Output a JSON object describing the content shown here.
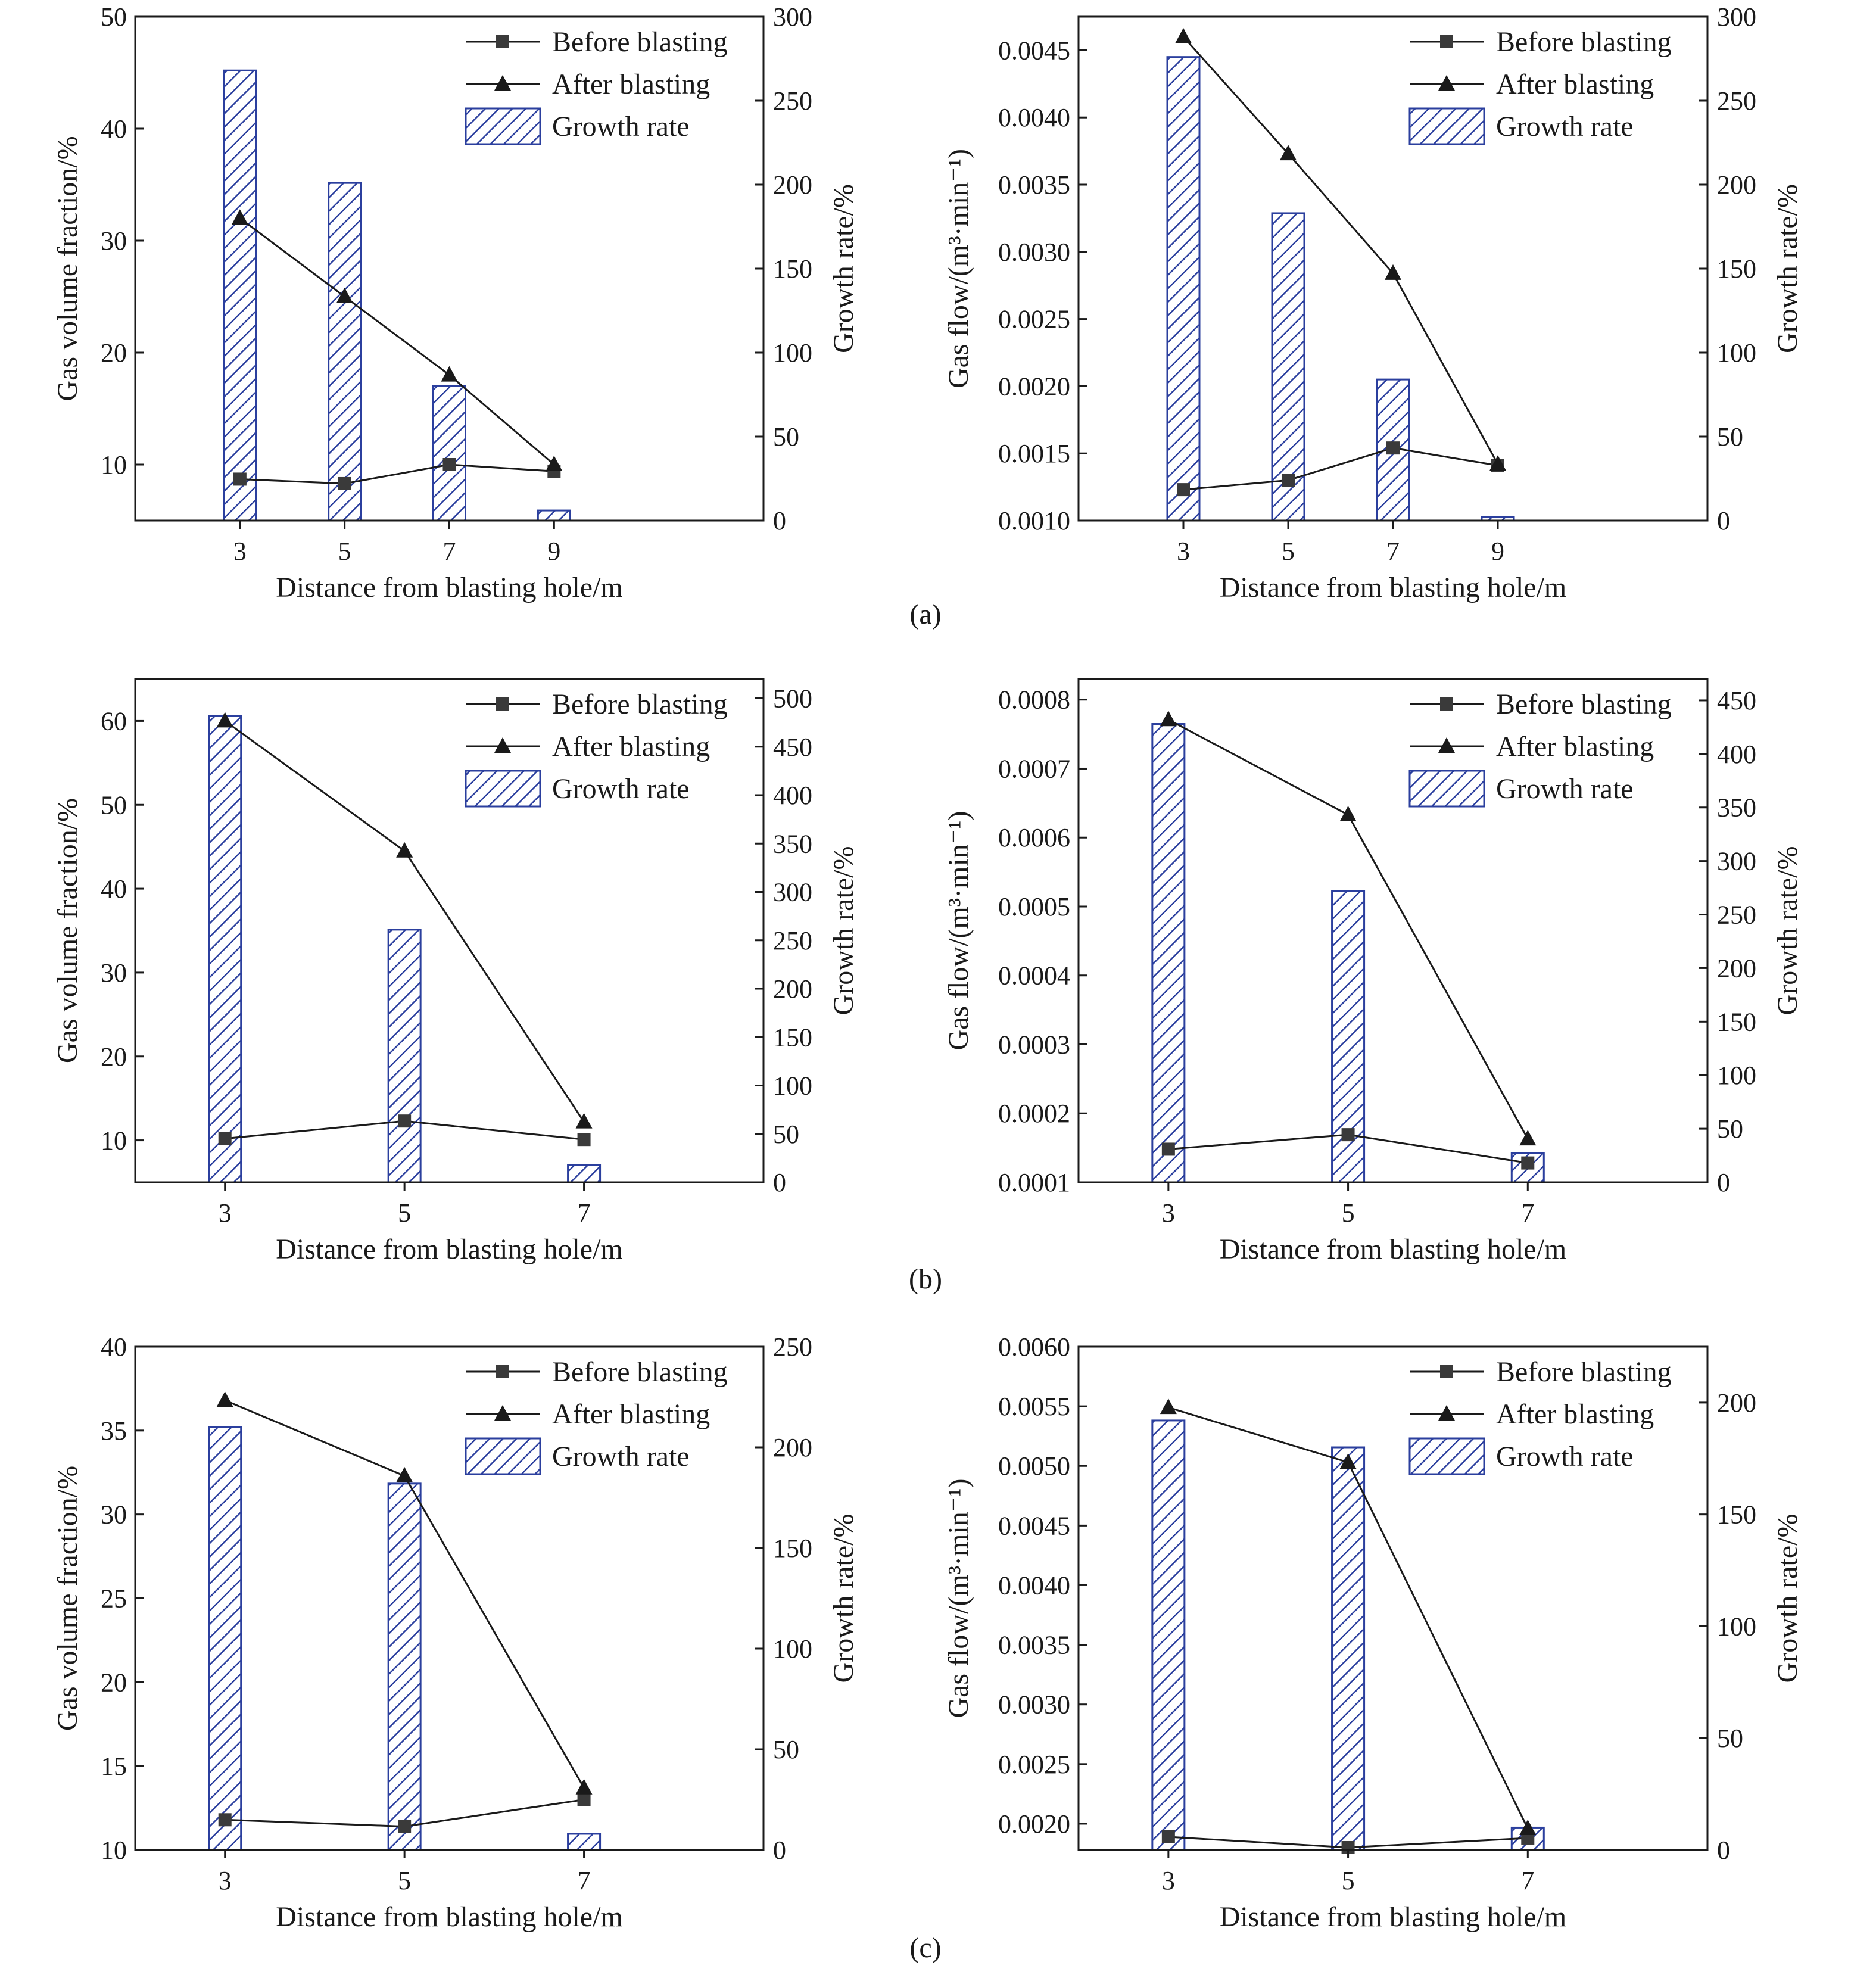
{
  "figure": {
    "panel_labels": [
      "(a)",
      "(b)",
      "(c)"
    ]
  },
  "chart_data": [
    {
      "type": "bar-line combo",
      "panel": "a",
      "xlabel": "Distance from blasting hole/m",
      "ylabel": "Gas volume fraction/%",
      "y2label": "Growth rate/%",
      "categories": [
        3,
        5,
        7,
        9
      ],
      "xlim": [
        1,
        13
      ],
      "ylim": [
        5,
        50
      ],
      "yticks": [
        10,
        20,
        30,
        40,
        50
      ],
      "y2lim": [
        0,
        300
      ],
      "y2ticks": [
        0,
        50,
        100,
        150,
        200,
        250,
        300
      ],
      "series": [
        {
          "name": "Before blasting",
          "kind": "line",
          "marker": "square",
          "axis": "left",
          "values": [
            8.7,
            8.3,
            10.0,
            9.4
          ]
        },
        {
          "name": "After blasting",
          "kind": "line",
          "marker": "triangle",
          "axis": "left",
          "values": [
            32.0,
            25.0,
            18.0,
            10.0
          ]
        },
        {
          "name": "Growth rate",
          "kind": "bar",
          "axis": "right",
          "values": [
            268,
            201,
            80,
            6
          ]
        }
      ],
      "legend": "top-right",
      "grid": false,
      "colors": {
        "bar": "#2b3f9e",
        "line": "#1a1a1a"
      }
    },
    {
      "type": "bar-line combo",
      "panel": "a",
      "xlabel": "Distance from blasting hole/m",
      "ylabel": "Gas flow/(m³·min⁻¹)",
      "y2label": "Growth rate/%",
      "categories": [
        3,
        5,
        7,
        9
      ],
      "xlim": [
        1,
        13
      ],
      "ylim": [
        0.001,
        0.00475
      ],
      "yticks": [
        "0.0010",
        "0.0015",
        "0.0020",
        "0.0025",
        "0.0030",
        "0.0035",
        "0.0040",
        "0.0045"
      ],
      "y2lim": [
        0,
        300
      ],
      "y2ticks": [
        0,
        50,
        100,
        150,
        200,
        250,
        300
      ],
      "series": [
        {
          "name": "Before blasting",
          "kind": "line",
          "marker": "square",
          "axis": "left",
          "values": [
            0.00123,
            0.0013,
            0.00154,
            0.00141
          ]
        },
        {
          "name": "After blasting",
          "kind": "line",
          "marker": "triangle",
          "axis": "left",
          "values": [
            0.0046,
            0.00373,
            0.00284,
            0.00142
          ]
        },
        {
          "name": "Growth rate",
          "kind": "bar",
          "axis": "right",
          "values": [
            276,
            183,
            84,
            2
          ]
        }
      ],
      "legend": "top-right",
      "grid": false,
      "colors": {
        "bar": "#2b3f9e",
        "line": "#1a1a1a"
      }
    },
    {
      "type": "bar-line combo",
      "panel": "b",
      "xlabel": "Distance from blasting hole/m",
      "ylabel": "Gas volume fraction/%",
      "y2label": "Growth rate/%",
      "categories": [
        3,
        5,
        7
      ],
      "xlim": [
        2,
        9
      ],
      "ylim": [
        5,
        65
      ],
      "yticks": [
        10,
        20,
        30,
        40,
        50,
        60
      ],
      "y2lim": [
        0,
        520
      ],
      "y2ticks": [
        0,
        50,
        100,
        150,
        200,
        250,
        300,
        350,
        400,
        450,
        500
      ],
      "series": [
        {
          "name": "Before blasting",
          "kind": "line",
          "marker": "square",
          "axis": "left",
          "values": [
            10.2,
            12.3,
            10.1
          ]
        },
        {
          "name": "After blasting",
          "kind": "line",
          "marker": "triangle",
          "axis": "left",
          "values": [
            60.0,
            44.5,
            12.2
          ]
        },
        {
          "name": "Growth rate",
          "kind": "bar",
          "axis": "right",
          "values": [
            482,
            261,
            18
          ]
        }
      ],
      "legend": "top-right",
      "grid": false,
      "colors": {
        "bar": "#2b3f9e",
        "line": "#1a1a1a"
      }
    },
    {
      "type": "bar-line combo",
      "panel": "b",
      "xlabel": "Distance from blasting hole/m",
      "ylabel": "Gas flow/(m³·min⁻¹)",
      "y2label": "Growth rate/%",
      "categories": [
        3,
        5,
        7
      ],
      "xlim": [
        2,
        9
      ],
      "ylim": [
        0.0001,
        0.00083
      ],
      "yticks": [
        "0.0001",
        "0.0002",
        "0.0003",
        "0.0004",
        "0.0005",
        "0.0006",
        "0.0007",
        "0.0008"
      ],
      "y2lim": [
        0,
        470
      ],
      "y2ticks": [
        0,
        50,
        100,
        150,
        200,
        250,
        300,
        350,
        400,
        450
      ],
      "series": [
        {
          "name": "Before blasting",
          "kind": "line",
          "marker": "square",
          "axis": "left",
          "values": [
            0.000148,
            0.000169,
            0.000128
          ]
        },
        {
          "name": "After blasting",
          "kind": "line",
          "marker": "triangle",
          "axis": "left",
          "values": [
            0.000771,
            0.000633,
            0.000163
          ]
        },
        {
          "name": "Growth rate",
          "kind": "bar",
          "axis": "right",
          "values": [
            428,
            272,
            27
          ]
        }
      ],
      "legend": "top-right",
      "grid": false,
      "colors": {
        "bar": "#2b3f9e",
        "line": "#1a1a1a"
      }
    },
    {
      "type": "bar-line combo",
      "panel": "c",
      "xlabel": "Distance from blasting hole/m",
      "ylabel": "Gas volume fraction/%",
      "y2label": "Growth rate/%",
      "categories": [
        3,
        5,
        7
      ],
      "xlim": [
        2,
        9
      ],
      "ylim": [
        10,
        40
      ],
      "yticks": [
        10,
        15,
        20,
        25,
        30,
        35,
        40
      ],
      "y2lim": [
        0,
        250
      ],
      "y2ticks": [
        0,
        50,
        100,
        150,
        200,
        250
      ],
      "series": [
        {
          "name": "Before blasting",
          "kind": "line",
          "marker": "square",
          "axis": "left",
          "values": [
            11.8,
            11.4,
            13.0
          ]
        },
        {
          "name": "After blasting",
          "kind": "line",
          "marker": "triangle",
          "axis": "left",
          "values": [
            36.8,
            32.3,
            13.7
          ]
        },
        {
          "name": "Growth rate",
          "kind": "bar",
          "axis": "right",
          "values": [
            210,
            182,
            8
          ]
        }
      ],
      "legend": "top-right",
      "grid": false,
      "colors": {
        "bar": "#2b3f9e",
        "line": "#1a1a1a"
      }
    },
    {
      "type": "bar-line combo",
      "panel": "c",
      "xlabel": "Distance from blasting hole/m",
      "ylabel": "Gas flow/(m³·min⁻¹)",
      "y2label": "Growth rate/%",
      "categories": [
        3,
        5,
        7
      ],
      "xlim": [
        2,
        9
      ],
      "ylim": [
        0.00178,
        0.006
      ],
      "yticks": [
        "0.0020",
        "0.0025",
        "0.0030",
        "0.0035",
        "0.0040",
        "0.0045",
        "0.0050",
        "0.0055",
        "0.0060"
      ],
      "y2lim": [
        0,
        225
      ],
      "y2ticks": [
        0,
        50,
        100,
        150,
        200
      ],
      "series": [
        {
          "name": "Before blasting",
          "kind": "line",
          "marker": "square",
          "axis": "left",
          "values": [
            0.00189,
            0.0018,
            0.00188
          ]
        },
        {
          "name": "After blasting",
          "kind": "line",
          "marker": "triangle",
          "axis": "left",
          "values": [
            0.00549,
            0.00503,
            0.00196
          ]
        },
        {
          "name": "Growth rate",
          "kind": "bar",
          "axis": "right",
          "values": [
            192,
            180,
            10
          ]
        }
      ],
      "legend": "top-right",
      "grid": false,
      "colors": {
        "bar": "#2b3f9e",
        "line": "#1a1a1a"
      }
    }
  ]
}
